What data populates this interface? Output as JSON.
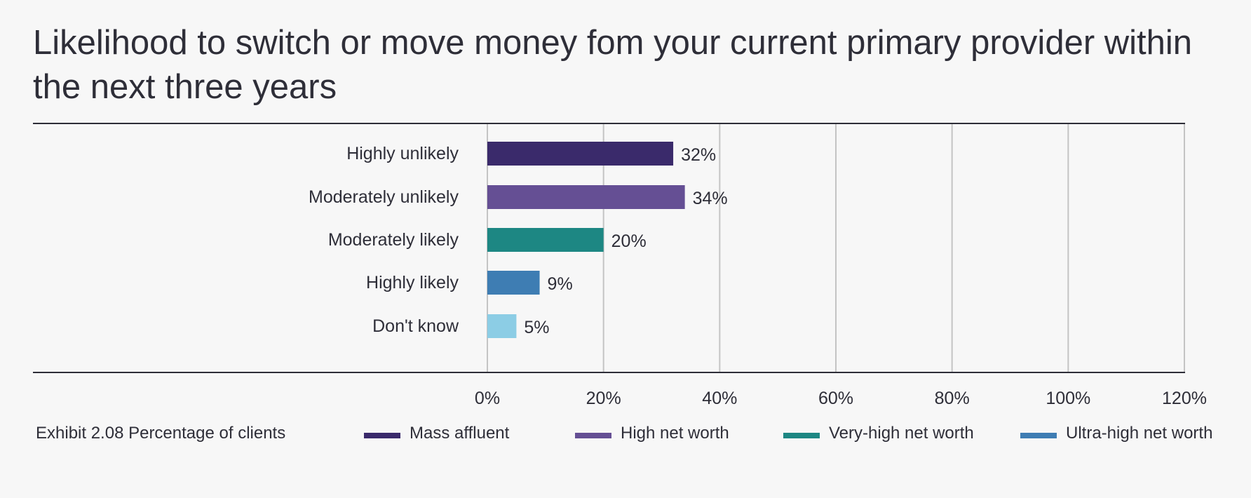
{
  "chart_data": {
    "type": "bar",
    "orientation": "horizontal",
    "title": "Likelihood to switch or move money fom your current primary provider within the next three years",
    "categories": [
      "Highly unlikely",
      "Moderately unlikely",
      "Moderately likely",
      "Highly likely",
      "Don't know"
    ],
    "values": [
      32,
      34,
      20,
      9,
      5
    ],
    "value_labels": [
      "32%",
      "34%",
      "20%",
      "9%",
      "5%"
    ],
    "bar_colors": [
      "#3a2a6b",
      "#654f94",
      "#1d8783",
      "#3e7db3",
      "#8ccde5"
    ],
    "xlim": [
      0,
      120
    ],
    "x_ticks": [
      "0%",
      "20%",
      "40%",
      "60%",
      "80%",
      "100%",
      "120%"
    ],
    "grid": true,
    "legend": {
      "position": "bottom",
      "entries": [
        {
          "label": "Mass affluent",
          "color": "#3a2a6b"
        },
        {
          "label": "High net worth",
          "color": "#654f94"
        },
        {
          "label": "Very-high net worth",
          "color": "#1d8783"
        },
        {
          "label": "Ultra-high net worth",
          "color": "#3e7db3"
        }
      ]
    },
    "footnote": "Exhibit 2.08 Percentage of clients"
  }
}
